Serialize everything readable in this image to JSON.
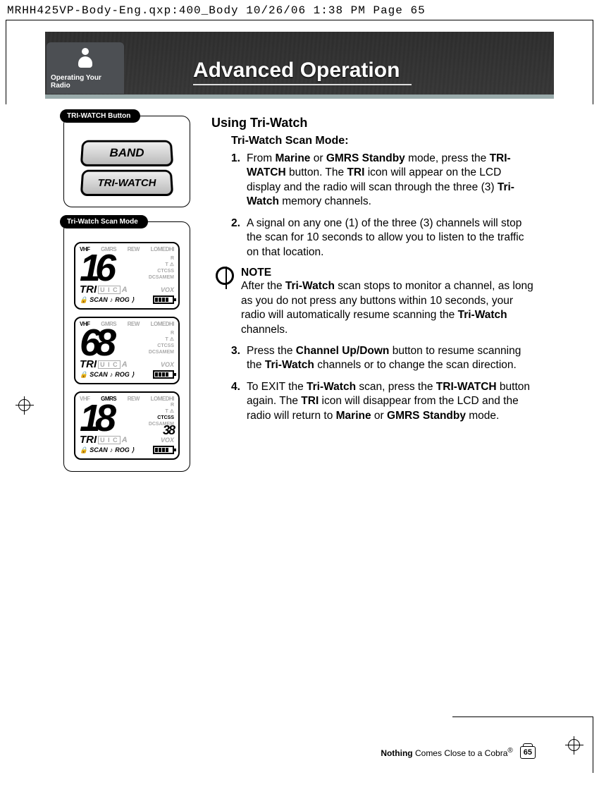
{
  "header_line": "MRHH425VP-Body-Eng.qxp:400_Body  10/26/06  1:38 PM  Page 65",
  "tab_label": "Operating Your Radio",
  "section_title": "Advanced Operation",
  "callout1_label": "TRI-WATCH Button",
  "button1_text": "BAND",
  "button2_text": "TRI-WATCH",
  "callout2_label": "Tri-Watch Scan Mode",
  "lcd": {
    "vhf": "VHF",
    "gmrs": "GMRS",
    "rew": "REW",
    "lo": "LO",
    "med": "MED",
    "hi": "HI",
    "r": "R",
    "t": "T",
    "ctcss": "CTCSS",
    "dcsa": "DCSA",
    "mem": "MEM",
    "vox": "VOX",
    "tri": "TRI",
    "uic": "U I C",
    "a": "A",
    "scan": "SCAN",
    "rog": "ROG",
    "ch1": "16",
    "ch2": "68",
    "ch3": "18",
    "sub3": "38"
  },
  "main": {
    "h2": "Using Tri-Watch",
    "h3": "Tri-Watch Scan Mode:",
    "step1": {
      "n": "1.",
      "t1": "From ",
      "b1": "Marine",
      "t2": " or ",
      "b2": "GMRS Standby",
      "t3": " mode, press the ",
      "b3": "TRI-WATCH",
      "t4": " button. The ",
      "b4": "TRI",
      "t5": " icon will appear on the LCD display and the radio will scan through the three (3) ",
      "b5": "Tri-Watch",
      "t6": " memory channels."
    },
    "step2": {
      "n": "2.",
      "t": "A signal on any one (1) of the three (3) channels will stop the scan for 10 seconds to allow you to listen to the traffic on that location."
    },
    "note": {
      "title": "NOTE",
      "t1": "After the ",
      "b1": "Tri-Watch",
      "t2": " scan stops to monitor a channel, as long as you do not press any buttons within 10 seconds, your radio will automatically resume scanning the ",
      "b2": "Tri-Watch",
      "t3": " channels."
    },
    "step3": {
      "n": "3.",
      "t1": "Press the ",
      "b1": "Channel Up/Down",
      "t2": " button to resume scanning the ",
      "b2": "Tri-Watch",
      "t3": " channels or to change the scan direction."
    },
    "step4": {
      "n": "4.",
      "t1": "To EXIT the ",
      "b1": "Tri-Watch",
      "t2": " scan, press the ",
      "b2": "TRI-WATCH",
      "t3": " button again. The ",
      "b3": "TRI",
      "t4": " icon will disappear from the LCD and the radio will return to ",
      "b4": "Marine",
      "t5": " or ",
      "b5": "GMRS Standby",
      "t6": " mode."
    }
  },
  "footer": {
    "b": "Nothing",
    "t": " Comes Close to a Cobra",
    "r": "®",
    "page": "65"
  }
}
